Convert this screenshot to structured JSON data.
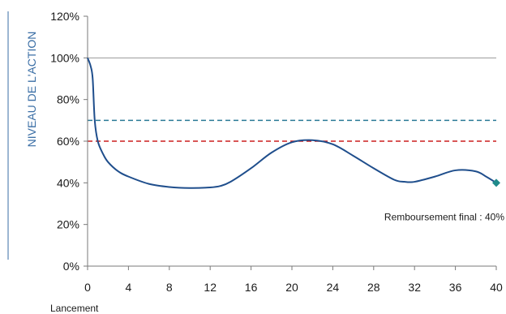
{
  "chart_data": {
    "type": "line",
    "title": "",
    "ylabel": "NIVEAU DE L'ACTION",
    "xlabel": "",
    "x_start_label": "Lancement",
    "xlim": [
      0,
      40
    ],
    "ylim": [
      0,
      120
    ],
    "x_ticks": [
      0,
      4,
      8,
      12,
      16,
      20,
      24,
      28,
      32,
      36,
      40
    ],
    "y_ticks": [
      0,
      20,
      40,
      60,
      80,
      100,
      120
    ],
    "y_tick_labels": [
      "0%",
      "20%",
      "40%",
      "60%",
      "80%",
      "100%",
      "120%"
    ],
    "x_tick_labels": [
      "0",
      "4",
      "8",
      "12",
      "16",
      "20",
      "24",
      "28",
      "32",
      "36",
      "40"
    ],
    "grid": false,
    "reference_lines": [
      {
        "y": 100,
        "style": "solid",
        "color": "#9a9a9a"
      },
      {
        "y": 70,
        "style": "dashed",
        "color": "#2a7a96"
      },
      {
        "y": 60,
        "style": "dashed",
        "color": "#cc1f1f"
      }
    ],
    "series": [
      {
        "color": "#1f4e8c",
        "x": [
          0,
          0.3,
          0.5,
          0.7,
          1,
          1.5,
          2,
          3,
          4,
          6,
          8,
          10,
          12,
          13,
          14,
          16,
          18,
          20,
          22,
          24,
          26,
          28,
          30,
          31,
          32,
          34,
          36,
          38,
          39,
          40
        ],
        "y": [
          100,
          96,
          90,
          70,
          60,
          54,
          50,
          45.5,
          43,
          39.5,
          38,
          37.5,
          37.8,
          38.5,
          40.5,
          47,
          54.5,
          59.5,
          60.5,
          58.5,
          53,
          47,
          41.5,
          40.5,
          40.5,
          43,
          46,
          45.5,
          43,
          40
        ]
      }
    ],
    "end_marker": {
      "x": 40,
      "y": 40,
      "shape": "diamond",
      "color": "#1f8a8a"
    },
    "annotations": [
      {
        "text": "Remboursement final : 40%",
        "x": 40,
        "y": 20
      }
    ]
  }
}
